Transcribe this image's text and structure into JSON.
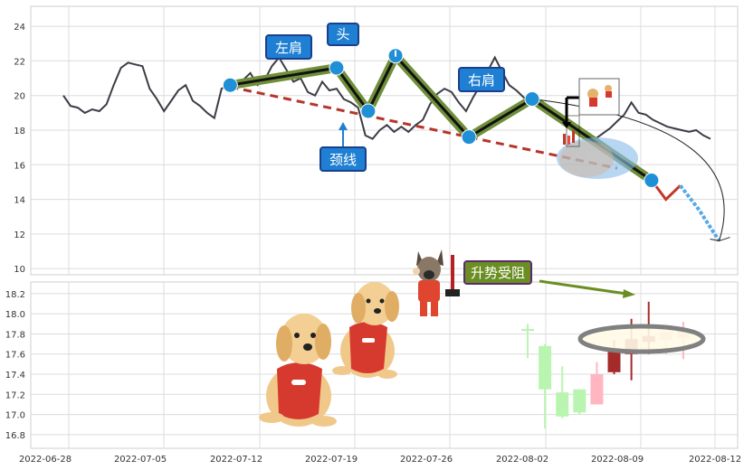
{
  "colors": {
    "price_line": "#3c3c46",
    "neckline": "#b5352a",
    "pattern_fill": "#6f8f3a",
    "pattern_edge": "#111111",
    "marker": "#1f8fd6",
    "label_bg": "#1f7fd2",
    "label_border": "#1b3f8c",
    "resist_bg": "#6b8e23",
    "resist_border": "#5a2a6e",
    "candle_up_light": "#ffb6c1",
    "candle_up": "#a52a2a",
    "candle_down_light": "#b9f5b0",
    "ellipse_fill": "#fffbe6",
    "ellipse_edge": "#808080",
    "grid": "#dcdcdc"
  },
  "labels": {
    "left_shoulder": "左肩",
    "head": "头",
    "right_shoulder": "右肩",
    "neckline": "颈线",
    "resistance": "升势受阻"
  },
  "chart_data": [
    {
      "type": "line",
      "panel": "top",
      "ylim": [
        9.8,
        25
      ],
      "yticks": [
        10,
        12,
        14,
        16,
        18,
        20,
        22,
        24
      ],
      "series": [
        {
          "values": [
            [
              0,
              20.0
            ],
            [
              0.5,
              19.4
            ],
            [
              1,
              19.3
            ],
            [
              1.5,
              19.0
            ],
            [
              2,
              19.2
            ],
            [
              2.5,
              19.1
            ],
            [
              3,
              19.5
            ],
            [
              3.5,
              20.6
            ],
            [
              4,
              21.6
            ],
            [
              4.5,
              21.9
            ],
            [
              5,
              21.8
            ],
            [
              5.5,
              21.7
            ],
            [
              6,
              20.4
            ],
            [
              6.5,
              19.8
            ],
            [
              7,
              19.1
            ],
            [
              7.5,
              19.7
            ],
            [
              8,
              20.3
            ],
            [
              8.5,
              20.6
            ],
            [
              9,
              19.7
            ],
            [
              9.5,
              19.4
            ],
            [
              10,
              19.0
            ],
            [
              10.5,
              18.7
            ],
            [
              11,
              20.4
            ],
            [
              11.5,
              20.6
            ],
            [
              12,
              20.6
            ],
            [
              12.5,
              20.9
            ],
            [
              13,
              21.3
            ],
            [
              13.5,
              20.6
            ],
            [
              14,
              20.9
            ],
            [
              14.5,
              21.7
            ],
            [
              15,
              22.2
            ],
            [
              15.5,
              21.5
            ],
            [
              16,
              20.8
            ],
            [
              16.5,
              21.0
            ],
            [
              17,
              20.2
            ],
            [
              17.5,
              20.0
            ],
            [
              18,
              20.8
            ],
            [
              18.5,
              20.3
            ],
            [
              19,
              20.4
            ],
            [
              19.5,
              19.8
            ],
            [
              20,
              19.6
            ],
            [
              20.5,
              19.3
            ],
            [
              21,
              17.7
            ],
            [
              21.5,
              17.5
            ],
            [
              22,
              18.0
            ],
            [
              22.5,
              18.3
            ],
            [
              23,
              17.9
            ],
            [
              23.5,
              18.2
            ],
            [
              24,
              17.9
            ],
            [
              24.5,
              18.3
            ],
            [
              25,
              18.6
            ],
            [
              25.5,
              19.5
            ],
            [
              26,
              20.1
            ],
            [
              26.5,
              20.4
            ],
            [
              27,
              20.2
            ],
            [
              27.5,
              19.6
            ],
            [
              28,
              19.1
            ],
            [
              28.5,
              19.9
            ],
            [
              29,
              20.6
            ],
            [
              29.5,
              21.4
            ],
            [
              30,
              22.2
            ],
            [
              30.5,
              21.4
            ],
            [
              31,
              20.6
            ],
            [
              31.5,
              20.3
            ],
            [
              32,
              19.9
            ],
            [
              32.5,
              19.6
            ],
            [
              33,
              19.5
            ],
            [
              33.5,
              19.1
            ],
            [
              34,
              18.9
            ],
            [
              34.5,
              18.6
            ],
            [
              35,
              18.3
            ],
            [
              35.5,
              18.0
            ],
            [
              36,
              17.8
            ],
            [
              36.5,
              17.7
            ],
            [
              37,
              17.5
            ],
            [
              37.5,
              17.8
            ],
            [
              38,
              18.1
            ],
            [
              38.5,
              18.5
            ],
            [
              39,
              18.9
            ],
            [
              39.5,
              19.6
            ],
            [
              40,
              19.0
            ],
            [
              40.5,
              18.9
            ],
            [
              41,
              18.6
            ],
            [
              41.5,
              18.4
            ],
            [
              42,
              18.2
            ],
            [
              42.5,
              18.1
            ],
            [
              43,
              18.0
            ],
            [
              43.5,
              17.9
            ],
            [
              44,
              18.0
            ],
            [
              44.5,
              17.7
            ],
            [
              45,
              17.5
            ]
          ]
        }
      ],
      "pattern_points": {
        "start": [
          11.6,
          20.6
        ],
        "left_shoulder": [
          19,
          21.6
        ],
        "neck_left": [
          21.2,
          19.1
        ],
        "head": [
          23.1,
          22.3
        ],
        "neck_right": [
          28.2,
          17.6
        ],
        "right_shoulder": [
          32.6,
          19.8
        ],
        "breakdown": [
          40.9,
          15.1
        ]
      },
      "projection": [
        [
          40.9,
          15.1
        ],
        [
          41.9,
          14.0
        ],
        [
          42.9,
          14.8
        ],
        [
          44.2,
          13.4
        ],
        [
          45.6,
          11.6
        ]
      ],
      "neckline_segment": [
        [
          11.6,
          20.5
        ],
        [
          38.5,
          15.8
        ]
      ]
    },
    {
      "type": "candlestick",
      "panel": "bottom",
      "ylim": [
        16.7,
        18.28
      ],
      "yticks": [
        16.8,
        17.0,
        17.2,
        17.4,
        17.6,
        17.8,
        18.0,
        18.2
      ],
      "x_ticks": [
        "2022-06-28",
        "2022-07-05",
        "2022-07-12",
        "2022-07-19",
        "2022-07-26",
        "2022-08-02",
        "2022-08-09",
        "2022-08-12"
      ],
      "candles": [
        {
          "open": 17.85,
          "close": 17.83,
          "high": 17.9,
          "low": 17.56,
          "kind": "doji_light_green"
        },
        {
          "open": 17.68,
          "close": 17.25,
          "high": 17.7,
          "low": 16.86,
          "kind": "down_light"
        },
        {
          "open": 17.22,
          "close": 16.98,
          "high": 17.48,
          "low": 16.96,
          "kind": "down_light"
        },
        {
          "open": 17.25,
          "close": 17.02,
          "high": 17.25,
          "low": 17.0,
          "kind": "down_light"
        },
        {
          "open": 17.1,
          "close": 17.4,
          "high": 17.52,
          "low": 17.1,
          "kind": "up_light"
        },
        {
          "open": 17.42,
          "close": 17.64,
          "high": 17.74,
          "low": 17.4,
          "kind": "up_dark"
        },
        {
          "open": 17.6,
          "close": 17.75,
          "high": 17.95,
          "low": 17.34,
          "kind": "up_dark"
        },
        {
          "open": 17.72,
          "close": 17.78,
          "high": 18.12,
          "low": 17.6,
          "kind": "up_dark"
        },
        {
          "open": 17.74,
          "close": 17.82,
          "high": 17.82,
          "low": 17.6,
          "kind": "up_light"
        },
        {
          "open": 17.76,
          "close": 17.84,
          "high": 17.92,
          "low": 17.55,
          "kind": "up_light"
        }
      ]
    }
  ]
}
